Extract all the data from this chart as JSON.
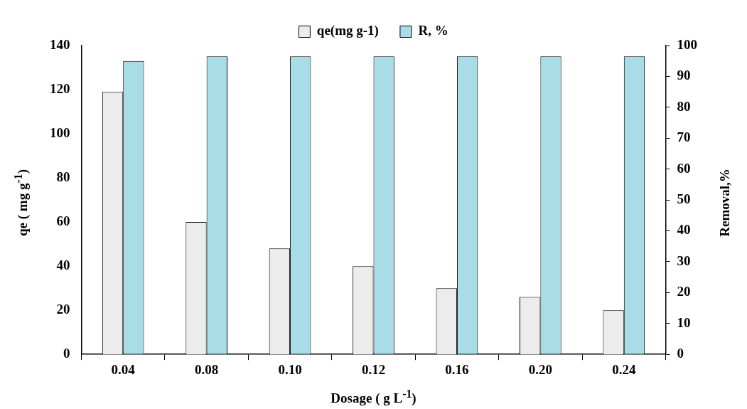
{
  "chart_data": {
    "type": "bar",
    "xlabel": "Dosage ( g L$^{-1}$)",
    "ylabel": "qe ( mg g$^{-1}$)",
    "y2label": "Removal,%",
    "categories": [
      "0.04",
      "0.08",
      "0.10",
      "0.12",
      "0.16",
      "0.20",
      "0.24"
    ],
    "series": [
      {
        "name": "qe(mg g-1)",
        "color": "#ececec",
        "values": [
          119,
          60,
          48,
          40,
          30,
          26,
          20
        ]
      },
      {
        "name": "R, %",
        "color": "#a8dde8",
        "axis": "y2",
        "values": [
          95,
          96.5,
          96.5,
          96.5,
          96.5,
          96.5,
          96.5
        ]
      }
    ],
    "ylim": [
      0,
      140
    ],
    "yticks": [
      0,
      20,
      40,
      60,
      80,
      100,
      120,
      140
    ],
    "y2lim": [
      0,
      100
    ],
    "y2ticks": [
      0,
      10,
      20,
      30,
      40,
      50,
      60,
      70,
      80,
      90,
      100
    ],
    "grid": false,
    "legend": "top"
  }
}
